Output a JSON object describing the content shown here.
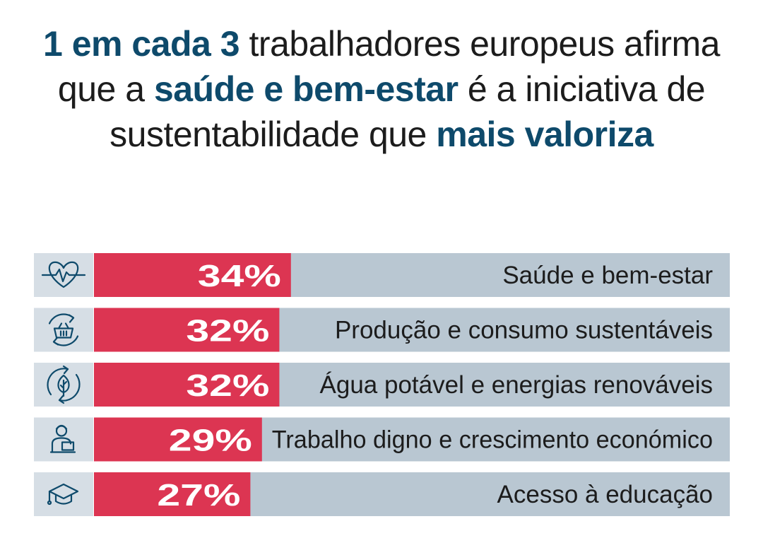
{
  "title": {
    "p1_bold": "1 em cada 3",
    "p2": " trabalhadores europeus afirma que a ",
    "p3_bold": "saúde e bem-estar",
    "p4": " é a iniciativa de sustentabilidade que ",
    "p5_bold": "mais valoriza"
  },
  "colors": {
    "bar": "#dc3552",
    "track": "#b9c7d2",
    "icon_bg": "#d6dee5",
    "icon": "#0e4a6b",
    "title_accent": "#0e4a6b"
  },
  "chart_data": {
    "type": "bar",
    "orientation": "horizontal",
    "xlim": [
      0,
      100
    ],
    "categories": [
      "Saúde e bem-estar",
      "Produção e consumo sustentáveis",
      "Água potável e energias renováveis",
      "Trabalho digno e crescimento económico",
      "Acesso à educação"
    ],
    "values": [
      34,
      32,
      32,
      29,
      27
    ],
    "value_labels": [
      "34%",
      "32%",
      "32%",
      "29%",
      "27%"
    ],
    "icons": [
      "heart-pulse-icon",
      "recycle-basket-icon",
      "eco-leaf-icon",
      "worker-laptop-icon",
      "graduation-cap-icon"
    ]
  }
}
